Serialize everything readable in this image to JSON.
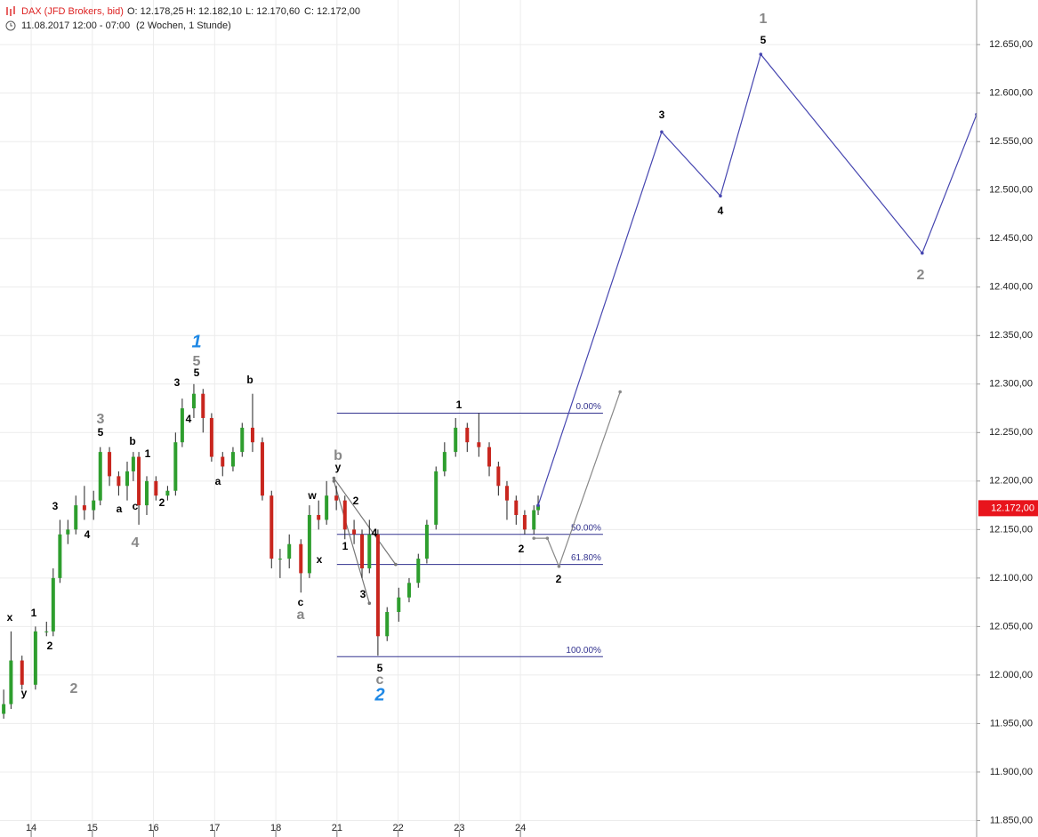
{
  "chart_data": {
    "type": "candlestick",
    "header": {
      "instrument": "DAX (JFD Brokers, bid)",
      "ohlc": [
        "O: 12.178,25",
        "H: 12.182,10",
        "L: 12.170,60",
        "C: 12.172,00"
      ],
      "timestamp": "11.08.2017 12:00 - 07:00",
      "period": "(2 Wochen, 1 Stunde)"
    },
    "x": [
      -0.45,
      -0.33,
      -0.15,
      0.07,
      0.25,
      0.36,
      0.47,
      0.6,
      0.73,
      0.87,
      1.02,
      1.13,
      1.28,
      1.43,
      1.57,
      1.67,
      1.76,
      1.89,
      2.04,
      2.23,
      2.36,
      2.47,
      2.66,
      2.81,
      2.95,
      3.13,
      3.3,
      3.45,
      3.62,
      3.78,
      3.93,
      4.07,
      4.22,
      4.41,
      4.55,
      4.7,
      4.83,
      4.99,
      5.13,
      5.28,
      5.41,
      5.53,
      5.67,
      5.82,
      6.01,
      6.18,
      6.33,
      6.47,
      6.62,
      6.76,
      6.94,
      7.13,
      7.32,
      7.49,
      7.64,
      7.78,
      7.93,
      8.07,
      8.22,
      8.29
    ],
    "open": [
      11960,
      11970,
      12015,
      11990,
      12045,
      12045,
      12100,
      12145,
      12150,
      12175,
      12170,
      12180,
      12230,
      12205,
      12195,
      12210,
      12225,
      12175,
      12200,
      12185,
      12190,
      12240,
      12275,
      12290,
      12265,
      12225,
      12215,
      12230,
      12255,
      12240,
      12185,
      12120,
      12120,
      12135,
      12105,
      12165,
      12160,
      12185,
      12180,
      12150,
      12145,
      12110,
      12145,
      12040,
      12065,
      12080,
      12095,
      12120,
      12155,
      12210,
      12230,
      12255,
      12240,
      12235,
      12215,
      12195,
      12180,
      12165,
      12150,
      12170
    ],
    "high": [
      11985,
      12045,
      12020,
      12050,
      12055,
      12110,
      12160,
      12160,
      12185,
      12195,
      12190,
      12235,
      12235,
      12210,
      12220,
      12230,
      12230,
      12205,
      12205,
      12195,
      12250,
      12285,
      12300,
      12295,
      12270,
      12230,
      12235,
      12260,
      12290,
      12245,
      12190,
      12130,
      12145,
      12140,
      12175,
      12180,
      12200,
      12195,
      12185,
      12160,
      12150,
      12160,
      12150,
      12070,
      12090,
      12100,
      12125,
      12160,
      12215,
      12240,
      12265,
      12260,
      12270,
      12240,
      12220,
      12200,
      12185,
      12170,
      12175,
      12185
    ],
    "low": [
      11955,
      11965,
      11985,
      11985,
      12040,
      12040,
      12095,
      12135,
      12145,
      12160,
      12160,
      12175,
      12195,
      12185,
      12180,
      12200,
      12155,
      12165,
      12180,
      12180,
      12185,
      12235,
      12265,
      12250,
      12220,
      12205,
      12210,
      12225,
      12230,
      12180,
      12110,
      12100,
      12110,
      12085,
      12100,
      12150,
      12155,
      12170,
      12140,
      12135,
      12100,
      12105,
      12020,
      12035,
      12055,
      12075,
      12090,
      12115,
      12150,
      12205,
      12225,
      12230,
      12225,
      12205,
      12185,
      12160,
      12155,
      12145,
      12145,
      12165
    ],
    "close": [
      11970,
      12015,
      11990,
      12045,
      12045,
      12100,
      12145,
      12150,
      12175,
      12170,
      12180,
      12230,
      12205,
      12195,
      12210,
      12225,
      12175,
      12200,
      12185,
      12190,
      12240,
      12275,
      12290,
      12265,
      12225,
      12215,
      12230,
      12255,
      12240,
      12185,
      12120,
      12120,
      12135,
      12105,
      12165,
      12160,
      12185,
      12180,
      12150,
      12145,
      12110,
      12145,
      12040,
      12065,
      12080,
      12095,
      12120,
      12155,
      12210,
      12230,
      12255,
      12240,
      12235,
      12215,
      12195,
      12180,
      12165,
      12150,
      12170,
      12175
    ],
    "up_color": "#2e9e2e",
    "down_color": "#c8261e",
    "xlim": [
      -0.51,
      15.46
    ],
    "xticks": [
      {
        "value": 0,
        "label": "14"
      },
      {
        "value": 1,
        "label": "15"
      },
      {
        "value": 2,
        "label": "16"
      },
      {
        "value": 3,
        "label": "17"
      },
      {
        "value": 4,
        "label": "18"
      },
      {
        "value": 5,
        "label": "21"
      },
      {
        "value": 6,
        "label": "22"
      },
      {
        "value": 7,
        "label": "23"
      },
      {
        "value": 8,
        "label": "24"
      }
    ],
    "ylim": [
      11833,
      12696
    ],
    "yticks": [
      {
        "value": 11850,
        "label": "11.850,00"
      },
      {
        "value": 11900,
        "label": "11.900,00"
      },
      {
        "value": 11950,
        "label": "11.950,00"
      },
      {
        "value": 12000,
        "label": "12.000,00"
      },
      {
        "value": 12050,
        "label": "12.050,00"
      },
      {
        "value": 12100,
        "label": "12.100,00"
      },
      {
        "value": 12150,
        "label": "12.150,00"
      },
      {
        "value": 12200,
        "label": "12.200,00"
      },
      {
        "value": 12250,
        "label": "12.250,00"
      },
      {
        "value": 12300,
        "label": "12.300,00"
      },
      {
        "value": 12350,
        "label": "12.350,00"
      },
      {
        "value": 12400,
        "label": "12.400,00"
      },
      {
        "value": 12450,
        "label": "12.450,00"
      },
      {
        "value": 12500,
        "label": "12.500,00"
      },
      {
        "value": 12550,
        "label": "12.550,00"
      },
      {
        "value": 12600,
        "label": "12.600,00"
      },
      {
        "value": 12650,
        "label": "12.650,00"
      }
    ],
    "grid": true,
    "last_price": {
      "value": 12172,
      "label": "12.172,00",
      "color": "#e8141c"
    },
    "fib": {
      "x": [
        5.0,
        9.35
      ],
      "color": "#33338f",
      "levels": [
        {
          "label": "0.00%",
          "value": 12270
        },
        {
          "label": "50.00%",
          "value": 12145
        },
        {
          "label": "61.80%",
          "value": 12114
        },
        {
          "label": "100.00%",
          "value": 12019
        }
      ]
    },
    "projection": {
      "x": [
        8.29,
        10.31,
        11.27,
        11.93,
        14.57,
        15.46
      ],
      "values": [
        12175,
        12560,
        12494,
        12640,
        12435,
        12578
      ],
      "color": "#4646b0"
    },
    "alt_projection": {
      "x": [
        8.22,
        8.44,
        8.63,
        9.63
      ],
      "values": [
        12141,
        12141,
        12112,
        12292
      ],
      "color": "#888888"
    },
    "trendlines": [
      {
        "x": [
          4.95,
          5.96
        ],
        "values": [
          12203,
          12114
        ]
      },
      {
        "x": [
          4.95,
          5.53
        ],
        "values": [
          12200,
          12074
        ]
      }
    ],
    "annotations": [
      {
        "text": "x",
        "color": "#000"
      },
      {
        "text": "1",
        "color": "#000"
      },
      {
        "text": "2",
        "color": "#000"
      },
      {
        "text": "y",
        "color": "#000"
      },
      {
        "text": "2",
        "color": "#888"
      },
      {
        "text": "3",
        "color": "#000"
      },
      {
        "text": "4",
        "color": "#000"
      },
      {
        "text": "3",
        "color": "#888"
      },
      {
        "text": "5",
        "color": "#000"
      },
      {
        "text": "b",
        "color": "#000"
      },
      {
        "text": "1",
        "color": "#000"
      },
      {
        "text": "a",
        "color": "#000"
      },
      {
        "text": "c",
        "color": "#000"
      },
      {
        "text": "4",
        "color": "#888"
      },
      {
        "text": "2",
        "color": "#000"
      },
      {
        "text": "3",
        "color": "#000"
      },
      {
        "text": "4",
        "color": "#000"
      },
      {
        "text": "5",
        "color": "#000"
      },
      {
        "text": "5",
        "color": "#888"
      },
      {
        "text": "1",
        "color": "#1e88e5"
      },
      {
        "text": "b",
        "color": "#000"
      },
      {
        "text": "a",
        "color": "#000"
      },
      {
        "text": "c",
        "color": "#000"
      },
      {
        "text": "a",
        "color": "#888"
      },
      {
        "text": "w",
        "color": "#000"
      },
      {
        "text": "x",
        "color": "#000"
      },
      {
        "text": "b",
        "color": "#888"
      },
      {
        "text": "y",
        "color": "#000"
      },
      {
        "text": "2",
        "color": "#000"
      },
      {
        "text": "1",
        "color": "#000"
      },
      {
        "text": "4",
        "color": "#000"
      },
      {
        "text": "3",
        "color": "#000"
      },
      {
        "text": "5",
        "color": "#000"
      },
      {
        "text": "c",
        "color": "#888"
      },
      {
        "text": "2",
        "color": "#1e88e5"
      },
      {
        "text": "1",
        "color": "#000"
      },
      {
        "text": "2",
        "color": "#000"
      },
      {
        "text": "2",
        "color": "#000"
      },
      {
        "text": "3",
        "color": "#000"
      },
      {
        "text": "4",
        "color": "#000"
      },
      {
        "text": "5",
        "color": "#000"
      },
      {
        "text": "1",
        "color": "#888"
      },
      {
        "text": "2",
        "color": "#888"
      }
    ]
  }
}
